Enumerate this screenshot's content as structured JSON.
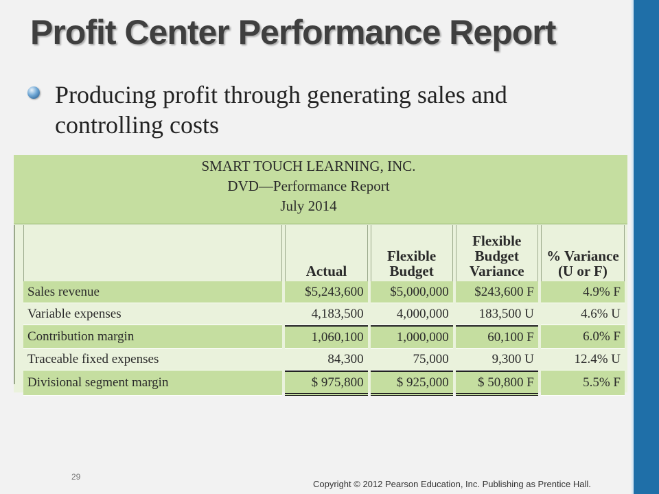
{
  "slide": {
    "title": "Profit Center Performance Report",
    "bullet": "Producing profit through generating sales and controlling costs",
    "page_number": "29",
    "copyright": "Copyright © 2012 Pearson Education, Inc. Publishing as Prentice Hall."
  },
  "report": {
    "company": "SMART TOUCH LEARNING, INC.",
    "name": "DVD—Performance Report",
    "period": "July 2014",
    "columns": {
      "actual": "Actual",
      "flex_budget_1": "Flexible",
      "flex_budget_2": "Budget",
      "variance_1": "Flexible",
      "variance_2": "Budget",
      "variance_3": "Variance",
      "pct_1": "% Variance",
      "pct_2": "(U or F)"
    },
    "rows": [
      {
        "label": "Sales revenue",
        "actual": "$5,243,600",
        "budget": "$5,000,000",
        "variance": "$243,600  F",
        "pct": "4.9%  F"
      },
      {
        "label": "Variable expenses",
        "actual": "4,183,500",
        "budget": "4,000,000",
        "variance": "183,500  U",
        "pct": "4.6%  U"
      },
      {
        "label": "Contribution margin",
        "actual": "1,060,100",
        "budget": "1,000,000",
        "variance": "60,100  F",
        "pct": "6.0%  F"
      },
      {
        "label": "Traceable fixed expenses",
        "actual": "84,300",
        "budget": "75,000",
        "variance": "9,300  U",
        "pct": "12.4%  U"
      },
      {
        "label": "Divisional segment margin",
        "actual": "$   975,800",
        "budget": "$   925,000",
        "variance": "$  50,800  F",
        "pct": "5.5%  F"
      }
    ]
  },
  "colors": {
    "accent_bar": "#1f6fa8",
    "header_green": "#c5dea0",
    "light_green": "#eaf2dc"
  }
}
